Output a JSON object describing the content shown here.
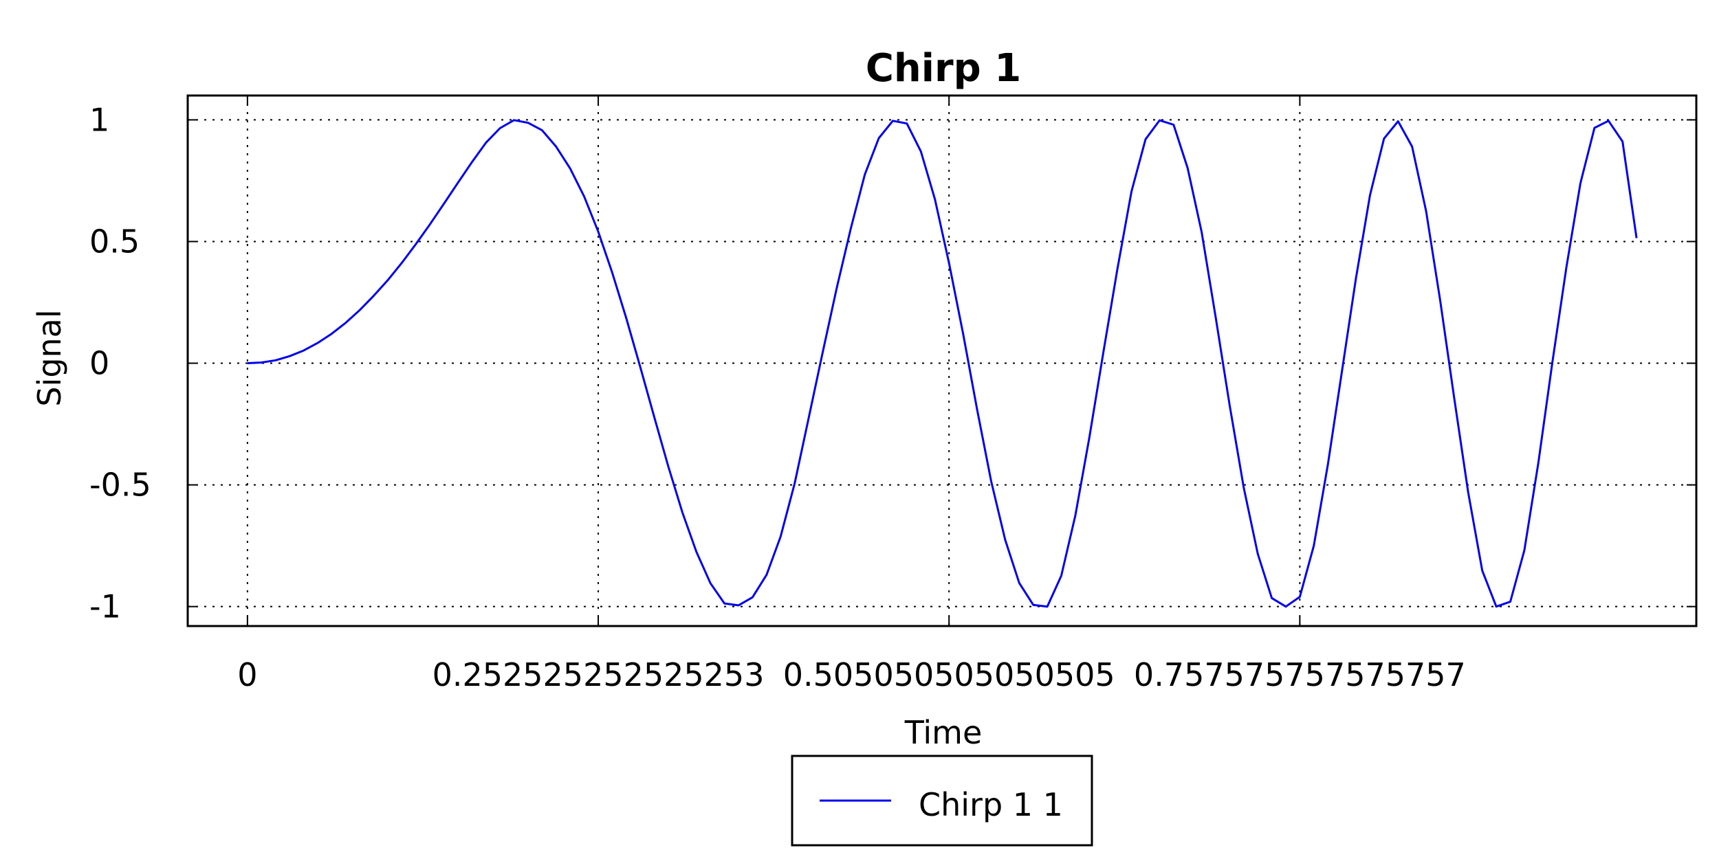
{
  "chart_data": {
    "type": "line",
    "title": "Chirp 1",
    "xlabel": "Time",
    "ylabel": "Signal",
    "xlim": [
      -0.043,
      1.043
    ],
    "ylim": [
      -1.08,
      1.1
    ],
    "x_ticks": [
      0,
      0.252525252525253,
      0.505050505050505,
      0.757575757575757
    ],
    "x_tick_labels": [
      "0",
      "0.252525252525253",
      "0.505050505050505",
      "0.757575757575757"
    ],
    "y_ticks": [
      1,
      0.5,
      0,
      -0.5,
      -1
    ],
    "y_tick_labels": [
      "1",
      "0.5",
      "0",
      "-0.5",
      "-1"
    ],
    "grid": true,
    "legend_position": "bottom-center",
    "series": [
      {
        "name": "Chirp 1 1",
        "color": "#0000ee",
        "x": [
          0,
          0.0101,
          0.0202,
          0.0303,
          0.0404,
          0.0505,
          0.0606,
          0.0707,
          0.0808,
          0.0909,
          0.101,
          0.1111,
          0.1212,
          0.1313,
          0.1414,
          0.1515,
          0.1616,
          0.1717,
          0.1818,
          0.1919,
          0.202,
          0.2121,
          0.2222,
          0.2323,
          0.2424,
          0.2525,
          0.2626,
          0.2727,
          0.2828,
          0.2929,
          0.303,
          0.3131,
          0.3232,
          0.3333,
          0.3434,
          0.3535,
          0.3636,
          0.3737,
          0.3838,
          0.3939,
          0.404,
          0.4141,
          0.4242,
          0.4343,
          0.4444,
          0.4545,
          0.4646,
          0.4747,
          0.4848,
          0.4949,
          0.5051,
          0.5152,
          0.5253,
          0.5354,
          0.5455,
          0.5556,
          0.5657,
          0.5758,
          0.5859,
          0.596,
          0.6061,
          0.6162,
          0.6263,
          0.6364,
          0.6465,
          0.6566,
          0.6667,
          0.6768,
          0.6869,
          0.697,
          0.7071,
          0.7172,
          0.7273,
          0.7374,
          0.7475,
          0.7576,
          0.7677,
          0.7778,
          0.7879,
          0.798,
          0.8081,
          0.8182,
          0.8283,
          0.8384,
          0.8485,
          0.8586,
          0.8687,
          0.8788,
          0.8889,
          0.899,
          0.9091,
          0.9192,
          0.9293,
          0.9394,
          0.9495,
          0.9596,
          0.9697,
          0.9798,
          0.9899,
          1.0
        ],
        "values": [
          0,
          0.003,
          0.012,
          0.029,
          0.052,
          0.083,
          0.121,
          0.166,
          0.218,
          0.277,
          0.341,
          0.412,
          0.489,
          0.57,
          0.655,
          0.741,
          0.826,
          0.906,
          0.966,
          0.999,
          0.988,
          0.957,
          0.89,
          0.8,
          0.685,
          0.541,
          0.372,
          0.185,
          -0.016,
          -0.222,
          -0.425,
          -0.613,
          -0.775,
          -0.904,
          -0.987,
          -0.995,
          -0.962,
          -0.87,
          -0.713,
          -0.494,
          -0.225,
          0.045,
          0.309,
          0.553,
          0.775,
          0.925,
          0.996,
          0.985,
          0.87,
          0.674,
          0.41,
          0.121,
          -0.191,
          -0.485,
          -0.726,
          -0.903,
          -0.993,
          -1.0,
          -0.873,
          -0.626,
          -0.305,
          0.047,
          0.389,
          0.706,
          0.92,
          0.998,
          0.98,
          0.802,
          0.539,
          0.189,
          -0.174,
          -0.511,
          -0.783,
          -0.965,
          -1.0,
          -0.96,
          -0.749,
          -0.416,
          -0.034,
          0.349,
          0.69,
          0.923,
          0.994,
          0.89,
          0.624,
          0.258,
          -0.143,
          -0.532,
          -0.852,
          -1.0,
          -0.98,
          -0.769,
          -0.409,
          0.004,
          0.395,
          0.74,
          0.967,
          0.996,
          0.911,
          0.514
        ]
      }
    ]
  }
}
